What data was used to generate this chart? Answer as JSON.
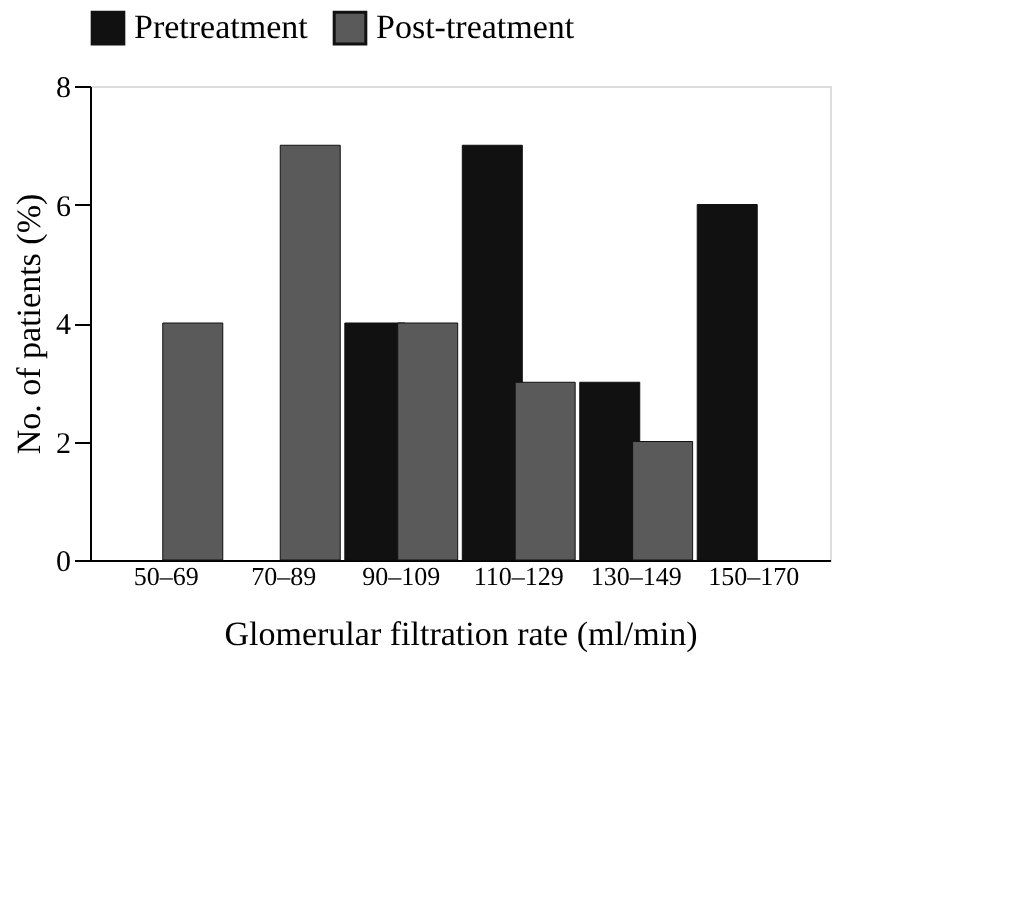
{
  "chart_data": {
    "type": "bar",
    "xlabel": "Glomerular filtration rate (ml/min)",
    "ylabel": "No. of patients (%)",
    "categories": [
      "50–69",
      "70–89",
      "90–109",
      "110–129",
      "130–149",
      "150–170"
    ],
    "series": [
      {
        "name": "Pretreatment",
        "color": "#111111",
        "values": [
          null,
          null,
          4,
          7,
          3,
          6
        ]
      },
      {
        "name": "Post-treatment",
        "color": "#5a5a5a",
        "values": [
          4,
          7,
          4,
          3,
          2,
          null
        ]
      }
    ],
    "ylim": [
      0,
      8
    ],
    "yticks": [
      0,
      2,
      4,
      6,
      8
    ],
    "grid": false,
    "legend": "top"
  }
}
